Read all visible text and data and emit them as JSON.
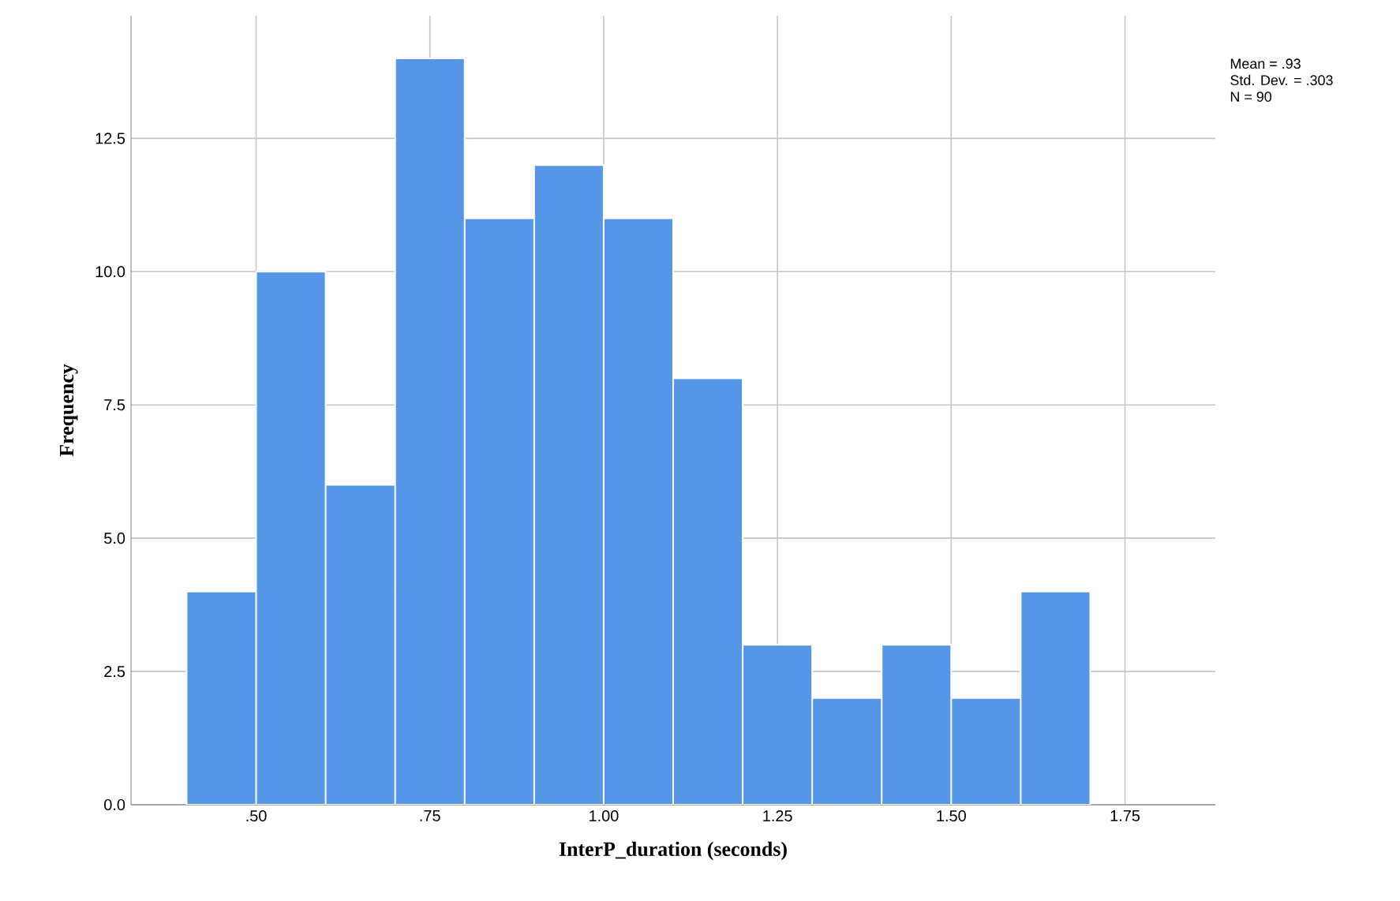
{
  "chart_data": {
    "type": "histogram",
    "xlabel": "InterP_duration (seconds)",
    "ylabel": "Frequency",
    "bins": [
      0.4,
      0.5,
      0.6,
      0.7,
      0.8,
      0.9,
      1.0,
      1.1,
      1.2,
      1.3,
      1.4,
      1.5,
      1.6,
      1.7
    ],
    "values": [
      4,
      10,
      6,
      14,
      11,
      12,
      11,
      8,
      3,
      2,
      3,
      2,
      4
    ],
    "color": "#5596e6",
    "xlim": [
      0.32,
      1.88
    ],
    "ylim": [
      0,
      14.8
    ],
    "xticks": [
      {
        "value": 0.5,
        "label": ".50"
      },
      {
        "value": 0.75,
        "label": ".75"
      },
      {
        "value": 1.0,
        "label": "1.00"
      },
      {
        "value": 1.25,
        "label": "1.25"
      },
      {
        "value": 1.5,
        "label": "1.50"
      },
      {
        "value": 1.75,
        "label": "1.75"
      }
    ],
    "yticks": [
      {
        "value": 0,
        "label": "0.0"
      },
      {
        "value": 2.5,
        "label": "2.5"
      },
      {
        "value": 5,
        "label": "5.0"
      },
      {
        "value": 7.5,
        "label": "7.5"
      },
      {
        "value": 10,
        "label": "10.0"
      },
      {
        "value": 12.5,
        "label": "12.5"
      }
    ],
    "grid": true,
    "annotations": [
      "Mean = .93",
      "Std. Dev. = .303",
      "N = 90"
    ]
  }
}
